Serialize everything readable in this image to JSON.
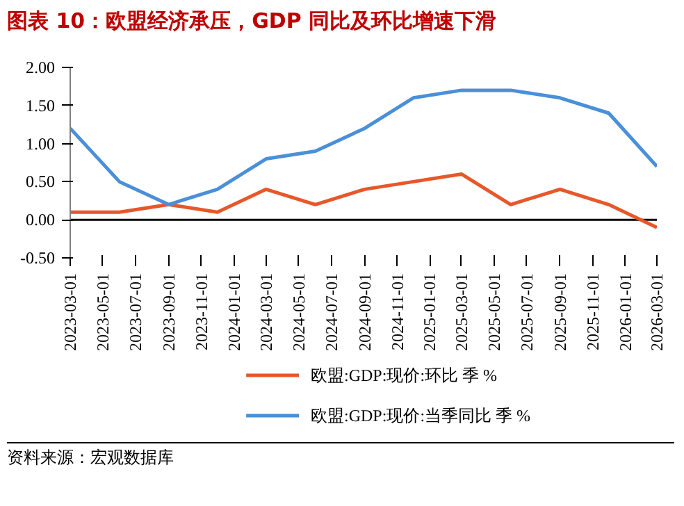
{
  "chart_data": {
    "type": "line",
    "title": "图表 10：欧盟经济承压，GDP 同比及环比增速下滑",
    "x": [
      "2023-03-01",
      "2023-06-01",
      "2023-09-01",
      "2023-12-01",
      "2024-03-01",
      "2024-06-01",
      "2024-09-01",
      "2024-12-01",
      "2025-03-01",
      "2025-06-01",
      "2025-09-01",
      "2025-12-01",
      "2026-03-01"
    ],
    "series": [
      {
        "name": "欧盟:GDP:现价:环比 季 %",
        "color": "#e8572a",
        "values": [
          0.1,
          0.1,
          0.2,
          0.1,
          0.4,
          0.2,
          0.4,
          0.5,
          0.6,
          0.2,
          0.4,
          0.2,
          -0.1
        ]
      },
      {
        "name": "欧盟:GDP:现价:当季同比 季 %",
        "color": "#4a8fd9",
        "values": [
          1.2,
          0.5,
          0.2,
          0.4,
          0.8,
          0.9,
          1.2,
          1.6,
          1.7,
          1.7,
          1.6,
          1.4,
          0.7
        ]
      }
    ],
    "xlim": [
      "2023-03-01",
      "2026-03-01"
    ],
    "xticks": [
      "2023-03-01",
      "2023-05-01",
      "2023-07-01",
      "2023-09-01",
      "2023-11-01",
      "2024-01-01",
      "2024-03-01",
      "2024-05-01",
      "2024-07-01",
      "2024-09-01",
      "2024-11-01",
      "2025-01-01",
      "2025-03-01",
      "2025-05-01",
      "2025-07-01",
      "2025-09-01",
      "2025-11-01",
      "2026-01-01",
      "2026-03-01"
    ],
    "ylim": [
      -0.5,
      2.0
    ],
    "yticks": [
      {
        "value": -0.5,
        "label": "-0.50"
      },
      {
        "value": 0,
        "label": "0.00"
      },
      {
        "value": 0.5,
        "label": "0.50"
      },
      {
        "value": 1.0,
        "label": "1.00"
      },
      {
        "value": 1.5,
        "label": "1.50"
      },
      {
        "value": 2.0,
        "label": "2.00"
      }
    ],
    "ref_lines": [
      {
        "axis": "y",
        "value": 0,
        "color": "#000000"
      }
    ],
    "legend": "bottom",
    "grid": false,
    "annotations": [
      "资料来源：宏观数据库"
    ]
  }
}
